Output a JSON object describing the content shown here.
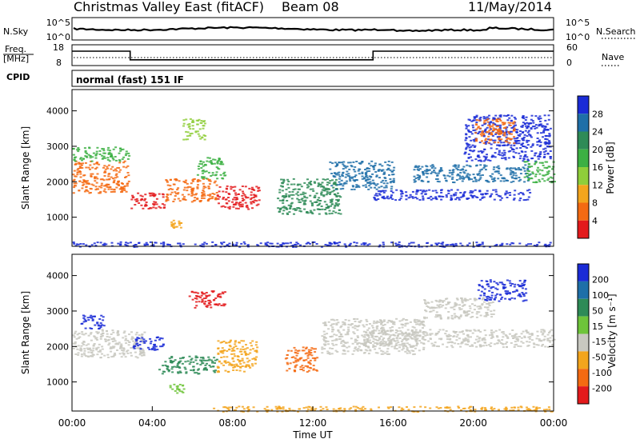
{
  "header": {
    "title": "Christmas Valley East (fitACF)",
    "beam": "Beam 08",
    "date": "11/May/2014"
  },
  "panels": {
    "noise": {
      "left_label": "N.Sky",
      "right_label": "N.Search",
      "left_ticks": [
        "10^5",
        "10^0"
      ],
      "right_ticks": [
        "10^5",
        "10^0"
      ]
    },
    "freq": {
      "left_label_1": "Freq.",
      "left_label_2": "[MHz]",
      "right_label": "Nave",
      "left_ticks": [
        "18",
        "8"
      ],
      "right_ticks": [
        "60",
        "0"
      ],
      "freq_steps": [
        {
          "start": 0,
          "end": 2.9,
          "value": 15.5
        },
        {
          "start": 2.9,
          "end": 15.0,
          "value": 11.0
        },
        {
          "start": 15.0,
          "end": 24,
          "value": 15.5
        }
      ]
    },
    "cpid": {
      "label": "CPID",
      "mode": "normal (fast) 151 IF"
    }
  },
  "chart_data": [
    {
      "type": "heatmap",
      "name": "power",
      "ylabel": "Slant Range [km]",
      "yticks": [
        1000,
        2000,
        3000,
        4000
      ],
      "ylim": [
        180,
        4600
      ],
      "xlim": [
        0,
        24
      ],
      "colorbar": {
        "label": "Power [dB]",
        "ticks": [
          "4",
          "8",
          "12",
          "16",
          "20",
          "24",
          "28"
        ],
        "colors": [
          "#1a2bd6",
          "#1e6fa8",
          "#2e8b57",
          "#3cb043",
          "#8fce3a",
          "#f3a51d",
          "#f46a12",
          "#e31a1c"
        ]
      },
      "regions": [
        {
          "t0": 0.0,
          "t1": 2.8,
          "r0": 1700,
          "r1": 2600,
          "color": "#f46a12"
        },
        {
          "t0": 0.0,
          "t1": 2.8,
          "r0": 2600,
          "r1": 3000,
          "color": "#3cb043"
        },
        {
          "t0": 2.9,
          "t1": 4.6,
          "r0": 1250,
          "r1": 1700,
          "color": "#e31a1c"
        },
        {
          "t0": 4.6,
          "t1": 7.2,
          "r0": 1450,
          "r1": 2100,
          "color": "#f46a12"
        },
        {
          "t0": 7.2,
          "t1": 9.3,
          "r0": 1250,
          "r1": 1900,
          "color": "#e31a1c"
        },
        {
          "t0": 5.5,
          "t1": 6.6,
          "r0": 3200,
          "r1": 3800,
          "color": "#8fce3a"
        },
        {
          "t0": 6.2,
          "t1": 7.6,
          "r0": 2100,
          "r1": 2700,
          "color": "#3cb043"
        },
        {
          "t0": 4.8,
          "t1": 5.4,
          "r0": 700,
          "r1": 950,
          "color": "#f3a51d"
        },
        {
          "t0": 10.2,
          "t1": 13.4,
          "r0": 1100,
          "r1": 2100,
          "color": "#2e8b57"
        },
        {
          "t0": 12.8,
          "t1": 16.0,
          "r0": 1800,
          "r1": 2600,
          "color": "#1e6fa8"
        },
        {
          "t0": 15.0,
          "t1": 22.8,
          "r0": 1500,
          "r1": 1800,
          "color": "#1a2bd6"
        },
        {
          "t0": 17.0,
          "t1": 22.8,
          "r0": 2000,
          "r1": 2500,
          "color": "#1e6fa8"
        },
        {
          "t0": 19.5,
          "t1": 23.8,
          "r0": 2600,
          "r1": 3900,
          "color": "#1a2bd6"
        },
        {
          "t0": 20.0,
          "t1": 22.0,
          "r0": 3100,
          "r1": 3800,
          "color": "#f46a12"
        },
        {
          "t0": 22.5,
          "t1": 24.0,
          "r0": 2000,
          "r1": 2600,
          "color": "#3cb043"
        },
        {
          "t0": 0.0,
          "t1": 24.0,
          "r0": 180,
          "r1": 320,
          "color": "#1a2bd6"
        }
      ]
    },
    {
      "type": "heatmap",
      "name": "velocity",
      "ylabel": "Slant Range [km]",
      "yticks": [
        1000,
        2000,
        3000,
        4000
      ],
      "ylim": [
        180,
        4600
      ],
      "xlim": [
        0,
        24
      ],
      "xticks": [
        "00:00",
        "04:00",
        "08:00",
        "12:00",
        "16:00",
        "20:00",
        "00:00"
      ],
      "xlabel": "Time UT",
      "colorbar": {
        "label": "Velocity [m s⁻¹]",
        "ticks": [
          "200",
          "100",
          "50",
          "15",
          "-15",
          "-50",
          "-100",
          "-200"
        ],
        "colors": [
          "#1a2bd6",
          "#1e6fa8",
          "#2e8b57",
          "#6ec43a",
          "#c8c8c0",
          "#f3a51d",
          "#f46a12",
          "#e31a1c"
        ]
      },
      "regions": [
        {
          "t0": 0.0,
          "t1": 3.6,
          "r0": 1700,
          "r1": 2500,
          "color": "#c8c8c0"
        },
        {
          "t0": 0.4,
          "t1": 1.6,
          "r0": 2500,
          "r1": 2900,
          "color": "#1a2bd6"
        },
        {
          "t0": 3.0,
          "t1": 4.5,
          "r0": 1900,
          "r1": 2300,
          "color": "#1a2bd6"
        },
        {
          "t0": 4.3,
          "t1": 7.2,
          "r0": 1250,
          "r1": 1750,
          "color": "#2e8b57"
        },
        {
          "t0": 7.2,
          "t1": 9.2,
          "r0": 1300,
          "r1": 2200,
          "color": "#f3a51d"
        },
        {
          "t0": 5.8,
          "t1": 7.6,
          "r0": 3100,
          "r1": 3600,
          "color": "#e31a1c"
        },
        {
          "t0": 4.8,
          "t1": 5.6,
          "r0": 700,
          "r1": 950,
          "color": "#6ec43a"
        },
        {
          "t0": 10.6,
          "t1": 12.2,
          "r0": 1300,
          "r1": 2000,
          "color": "#f46a12"
        },
        {
          "t0": 12.4,
          "t1": 17.5,
          "r0": 1800,
          "r1": 2800,
          "color": "#c8c8c0"
        },
        {
          "t0": 14.5,
          "t1": 24.0,
          "r0": 2000,
          "r1": 2500,
          "color": "#c8c8c0"
        },
        {
          "t0": 17.5,
          "t1": 21.0,
          "r0": 2800,
          "r1": 3400,
          "color": "#c8c8c0"
        },
        {
          "t0": 20.2,
          "t1": 22.6,
          "r0": 3300,
          "r1": 3900,
          "color": "#1a2bd6"
        },
        {
          "t0": 7.0,
          "t1": 24.0,
          "r0": 180,
          "r1": 330,
          "color": "#f3a51d"
        }
      ]
    }
  ]
}
